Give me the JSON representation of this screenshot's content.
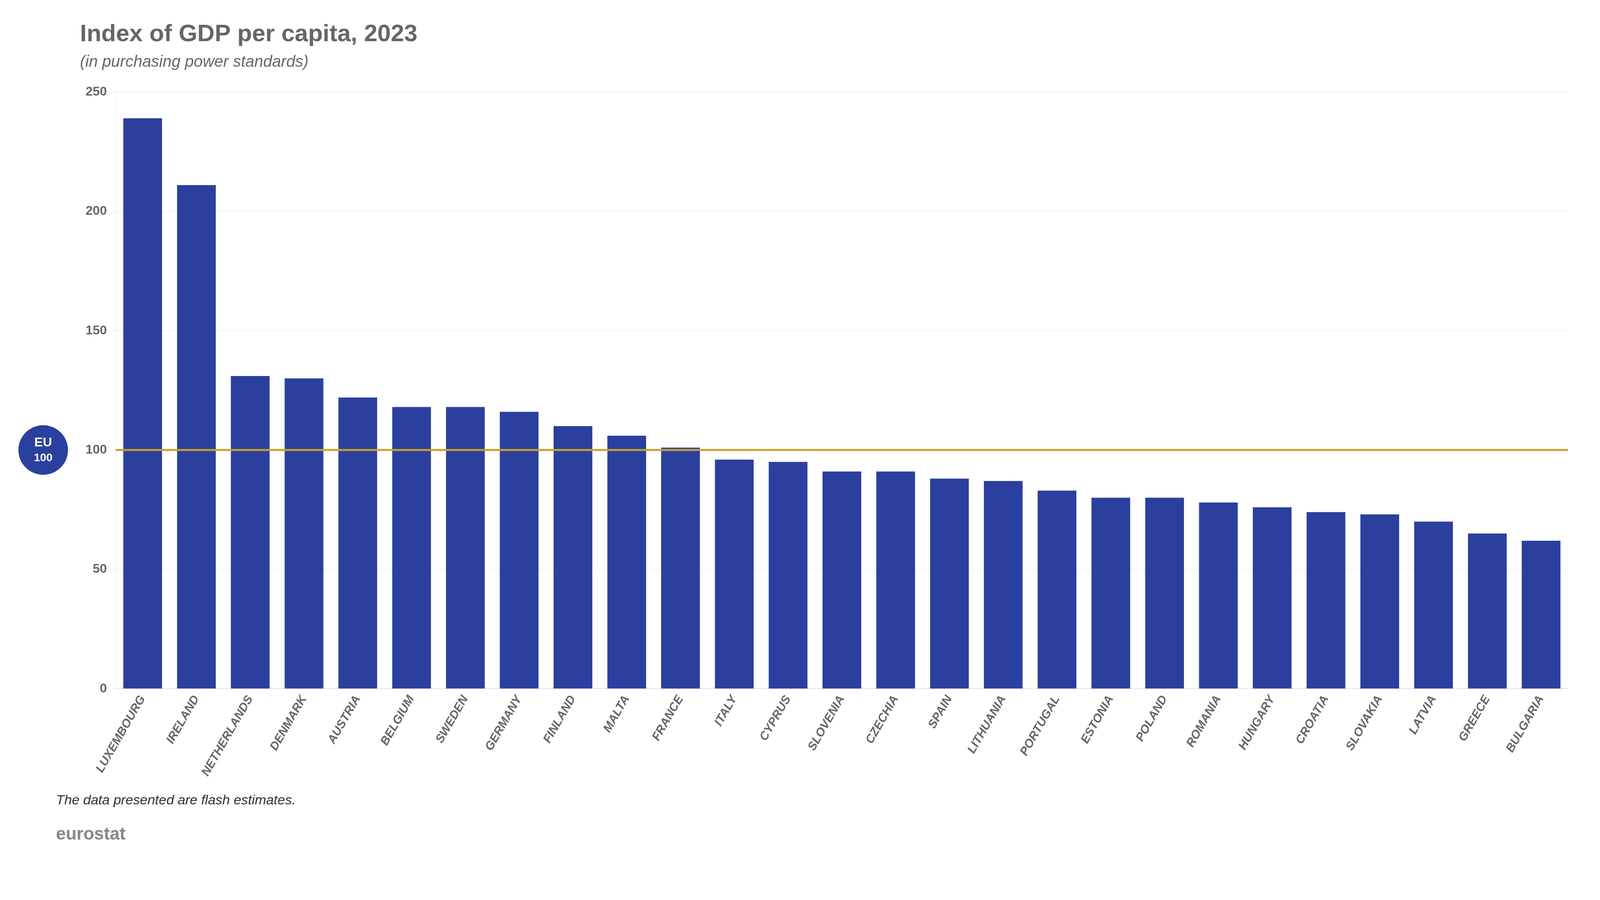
{
  "chart_data": {
    "type": "bar",
    "title": "Index of GDP per capita, 2023",
    "subtitle": "(in purchasing power standards)",
    "footnote": "The data presented are flash estimates.",
    "annotations": [
      "eurostat"
    ],
    "categories": [
      "LUXEMBOURG",
      "IRELAND",
      "NETHERLANDS",
      "DENMARK",
      "AUSTRIA",
      "BELGIUM",
      "SWEDEN",
      "GERMANY",
      "FINLAND",
      "MALTA",
      "FRANCE",
      "ITALY",
      "CYPRUS",
      "SLOVENIA",
      "CZECHIA",
      "SPAIN",
      "LITHUANIA",
      "PORTUGAL",
      "ESTONIA",
      "POLAND",
      "ROMANIA",
      "HUNGARY",
      "CROATIA",
      "SLOVAKIA",
      "LATVIA",
      "GREECE",
      "BULGARIA"
    ],
    "values": [
      239,
      211,
      131,
      130,
      122,
      118,
      118,
      116,
      110,
      106,
      101,
      96,
      95,
      91,
      91,
      88,
      87,
      83,
      80,
      80,
      78,
      76,
      74,
      73,
      70,
      65,
      62
    ],
    "color": "#2B3F9E",
    "reference_line": {
      "value": 100,
      "color": "#C9A227",
      "label": [
        "EU",
        "100"
      ],
      "label_color": "#2B3F9E"
    },
    "ylim": [
      0,
      250
    ],
    "yticks": [
      0,
      50,
      100,
      150,
      200,
      250
    ],
    "grid": true
  }
}
